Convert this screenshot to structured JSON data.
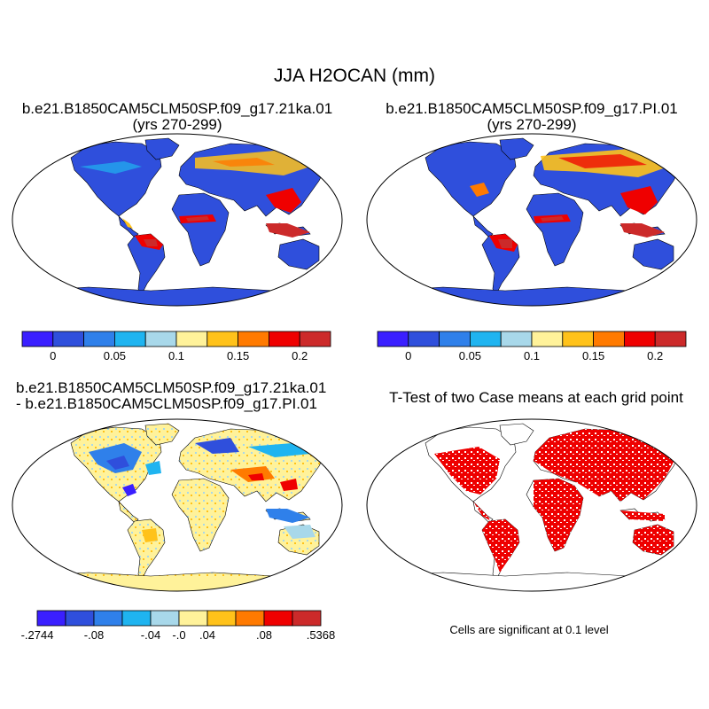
{
  "figure": {
    "title": "JJA H2OCAN (mm)"
  },
  "panels": [
    {
      "title_line1": "b.e21.B1850CAM5CLM50SP.f09_g17.21ka.01",
      "title_line2": "(yrs 270-299)",
      "kind": "field"
    },
    {
      "title_line1": "b.e21.B1850CAM5CLM50SP.f09_g17.PI.01",
      "title_line2": "(yrs 270-299)",
      "kind": "field"
    },
    {
      "title_line1": "b.e21.B1850CAM5CLM50SP.f09_g17.21ka.01",
      "title_line2": "- b.e21.B1850CAM5CLM50SP.f09_g17.PI.01",
      "kind": "difference"
    },
    {
      "title_line1": "T-Test of two Case means at each grid point",
      "kind": "significance",
      "note": "Cells are significant at 0.1 level"
    }
  ],
  "colorbars": {
    "absolute": {
      "colors": [
        "#3a1fff",
        "#2f4fdc",
        "#2f80ea",
        "#1fb4f0",
        "#a8d8ea",
        "#fff29a",
        "#ffc21a",
        "#ff7a00",
        "#ef0000",
        "#cc2a2a"
      ],
      "labels": [
        "0",
        "0.05",
        "0.1",
        "0.15",
        "0.2"
      ]
    },
    "difference": {
      "colors": [
        "#3a1fff",
        "#2f4fdc",
        "#2f80ea",
        "#1fb4f0",
        "#a8d8ea",
        "#fff29a",
        "#ffc21a",
        "#ff7a00",
        "#ef0000",
        "#cc2a2a"
      ],
      "labels": [
        "-.2744",
        "-.08",
        "-.04",
        "-.0",
        ".04",
        ".08",
        ".5368"
      ]
    }
  },
  "significance_color": "#ee0000",
  "ocean_color": "#ffffff"
}
